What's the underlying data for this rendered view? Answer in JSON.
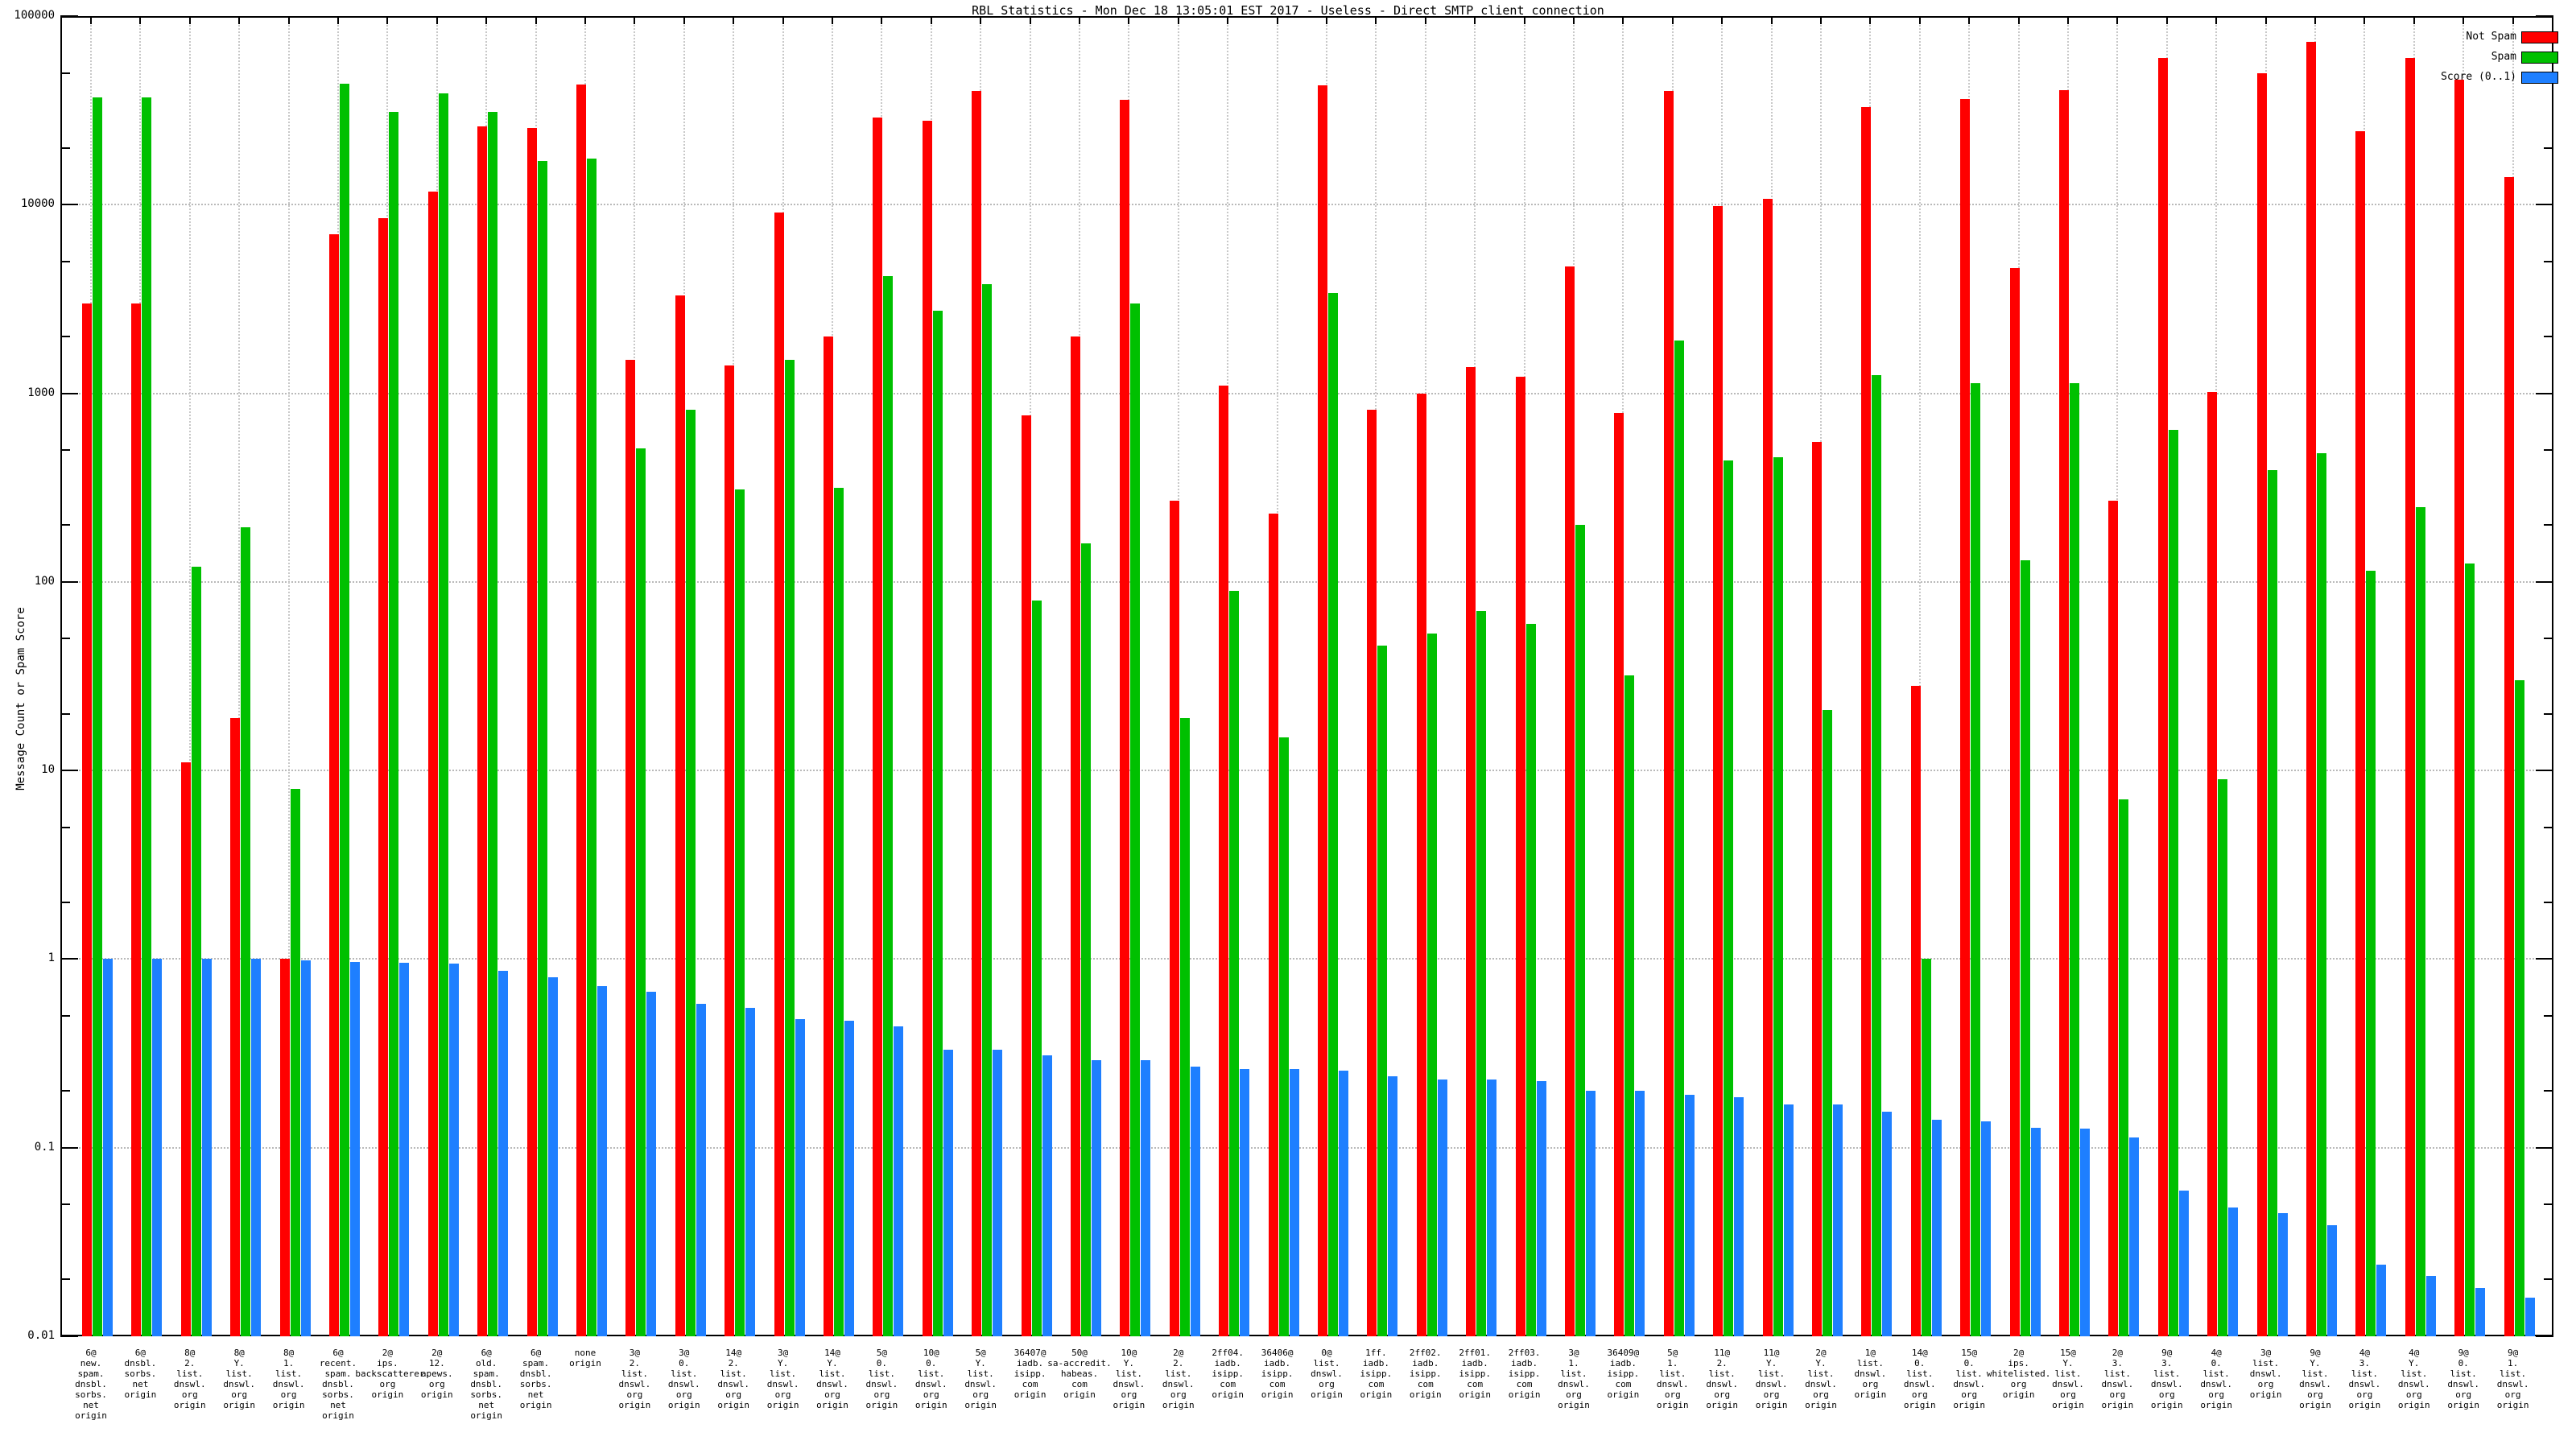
{
  "title": "RBL Statistics - Mon Dec 18 13:05:01 EST 2017 - Useless - Direct SMTP client connection",
  "y_axis_label": "Message Count or Spam Score",
  "legend": {
    "not_spam_label": "Not Spam",
    "spam_label": "Spam",
    "score_label": "Score (0..1)"
  },
  "colors": {
    "not_spam": "#ff0000",
    "spam": "#00c000",
    "score": "#1e7fff",
    "grid": "#b9b9b9",
    "axis": "#000000"
  },
  "chart_data": {
    "type": "bar",
    "scale": "log",
    "ylim": [
      0.01,
      100000
    ],
    "y_ticks": [
      "100000",
      "10000",
      "1000",
      "100",
      "10",
      "1",
      "0.1",
      "0.01"
    ],
    "grid": true,
    "legend_position": "top-right",
    "series_names": [
      "Not Spam",
      "Spam",
      "Score (0..1)"
    ],
    "groups": [
      {
        "label_lines": [
          "6@",
          "new.",
          "spam.",
          "dnsbl.",
          "sorbs.",
          "net",
          "origin"
        ],
        "not_spam": 3000,
        "spam": 37000,
        "score": 1.0
      },
      {
        "label_lines": [
          "6@",
          "dnsbl.",
          "sorbs.",
          "net",
          "origin"
        ],
        "not_spam": 3000,
        "spam": 37000,
        "score": 1.0
      },
      {
        "label_lines": [
          "8@",
          "2.",
          "list.",
          "dnswl.",
          "org",
          "origin"
        ],
        "not_spam": 11,
        "spam": 120,
        "score": 1.0
      },
      {
        "label_lines": [
          "8@",
          "Y.",
          "list.",
          "dnswl.",
          "org",
          "origin"
        ],
        "not_spam": 19,
        "spam": 195,
        "score": 1.0
      },
      {
        "label_lines": [
          "8@",
          "1.",
          "list.",
          "dnswl.",
          "org",
          "origin"
        ],
        "not_spam": 1.0,
        "spam": 8,
        "score": 0.98
      },
      {
        "label_lines": [
          "6@",
          "recent.",
          "spam.",
          "dnsbl.",
          "sorbs.",
          "net",
          "origin"
        ],
        "not_spam": 7000,
        "spam": 44000,
        "score": 0.97
      },
      {
        "label_lines": [
          "2@",
          "ips.",
          "backscatterer.",
          "org",
          "origin"
        ],
        "not_spam": 8500,
        "spam": 31000,
        "score": 0.96
      },
      {
        "label_lines": [
          "2@",
          "12.",
          "apews.",
          "org",
          "origin"
        ],
        "not_spam": 11700,
        "spam": 39000,
        "score": 0.95
      },
      {
        "label_lines": [
          "6@",
          "old.",
          "spam.",
          "dnsbl.",
          "sorbs.",
          "net",
          "origin"
        ],
        "not_spam": 26000,
        "spam": 31000,
        "score": 0.87
      },
      {
        "label_lines": [
          "6@",
          "spam.",
          "dnsbl.",
          "sorbs.",
          "net",
          "origin"
        ],
        "not_spam": 25500,
        "spam": 17000,
        "score": 0.8
      },
      {
        "label_lines": [
          "none",
          "origin"
        ],
        "not_spam": 43500,
        "spam": 17600,
        "score": 0.72
      },
      {
        "label_lines": [
          "3@",
          "2.",
          "list.",
          "dnswl.",
          "org",
          "origin"
        ],
        "not_spam": 1500,
        "spam": 510,
        "score": 0.67
      },
      {
        "label_lines": [
          "3@",
          "0.",
          "list.",
          "dnswl.",
          "org",
          "origin"
        ],
        "not_spam": 3300,
        "spam": 820,
        "score": 0.58
      },
      {
        "label_lines": [
          "14@",
          "2.",
          "list.",
          "dnswl.",
          "org",
          "origin"
        ],
        "not_spam": 1400,
        "spam": 310,
        "score": 0.55
      },
      {
        "label_lines": [
          "3@",
          "Y.",
          "list.",
          "dnswl.",
          "org",
          "origin"
        ],
        "not_spam": 9100,
        "spam": 1500,
        "score": 0.48
      },
      {
        "label_lines": [
          "14@",
          "Y.",
          "list.",
          "dnswl.",
          "org",
          "origin"
        ],
        "not_spam": 2000,
        "spam": 315,
        "score": 0.47
      },
      {
        "label_lines": [
          "5@",
          "0.",
          "list.",
          "dnswl.",
          "org",
          "origin"
        ],
        "not_spam": 29000,
        "spam": 4200,
        "score": 0.44
      },
      {
        "label_lines": [
          "10@",
          "0.",
          "list.",
          "dnswl.",
          "org",
          "origin"
        ],
        "not_spam": 28000,
        "spam": 2750,
        "score": 0.33
      },
      {
        "label_lines": [
          "5@",
          "Y.",
          "list.",
          "dnswl.",
          "org",
          "origin"
        ],
        "not_spam": 40000,
        "spam": 3800,
        "score": 0.33
      },
      {
        "label_lines": [
          "36407@",
          "iadb.",
          "isipp.",
          "com",
          "origin"
        ],
        "not_spam": 760,
        "spam": 80,
        "score": 0.31
      },
      {
        "label_lines": [
          "50@",
          "sa-accredit.",
          "habeas.",
          "com",
          "origin"
        ],
        "not_spam": 2000,
        "spam": 160,
        "score": 0.29
      },
      {
        "label_lines": [
          "10@",
          "Y.",
          "list.",
          "dnswl.",
          "org",
          "origin"
        ],
        "not_spam": 36000,
        "spam": 3000,
        "score": 0.29
      },
      {
        "label_lines": [
          "2@",
          "2.",
          "list.",
          "dnswl.",
          "org",
          "origin"
        ],
        "not_spam": 270,
        "spam": 19,
        "score": 0.27
      },
      {
        "label_lines": [
          "2ff04.",
          "iadb.",
          "isipp.",
          "com",
          "origin"
        ],
        "not_spam": 1100,
        "spam": 90,
        "score": 0.26
      },
      {
        "label_lines": [
          "36406@",
          "iadb.",
          "isipp.",
          "com",
          "origin"
        ],
        "not_spam": 230,
        "spam": 15,
        "score": 0.26
      },
      {
        "label_lines": [
          "0@",
          "list.",
          "dnswl.",
          "org",
          "origin"
        ],
        "not_spam": 43000,
        "spam": 3400,
        "score": 0.255
      },
      {
        "label_lines": [
          "1ff.",
          "iadb.",
          "isipp.",
          "com",
          "origin"
        ],
        "not_spam": 815,
        "spam": 46,
        "score": 0.24
      },
      {
        "label_lines": [
          "2ff02.",
          "iadb.",
          "isipp.",
          "com",
          "origin"
        ],
        "not_spam": 1000,
        "spam": 53,
        "score": 0.23
      },
      {
        "label_lines": [
          "2ff01.",
          "iadb.",
          "isipp.",
          "com",
          "origin"
        ],
        "not_spam": 1380,
        "spam": 70,
        "score": 0.23
      },
      {
        "label_lines": [
          "2ff03.",
          "iadb.",
          "isipp.",
          "com",
          "origin"
        ],
        "not_spam": 1230,
        "spam": 60,
        "score": 0.225
      },
      {
        "label_lines": [
          "3@",
          "1.",
          "list.",
          "dnswl.",
          "org",
          "origin"
        ],
        "not_spam": 4700,
        "spam": 200,
        "score": 0.2
      },
      {
        "label_lines": [
          "36409@",
          "iadb.",
          "isipp.",
          "com",
          "origin"
        ],
        "not_spam": 790,
        "spam": 32,
        "score": 0.2
      },
      {
        "label_lines": [
          "5@",
          "1.",
          "list.",
          "dnswl.",
          "org",
          "origin"
        ],
        "not_spam": 40000,
        "spam": 1900,
        "score": 0.19
      },
      {
        "label_lines": [
          "11@",
          "2.",
          "list.",
          "dnswl.",
          "org",
          "origin"
        ],
        "not_spam": 9800,
        "spam": 440,
        "score": 0.185
      },
      {
        "label_lines": [
          "11@",
          "Y.",
          "list.",
          "dnswl.",
          "org",
          "origin"
        ],
        "not_spam": 10700,
        "spam": 460,
        "score": 0.17
      },
      {
        "label_lines": [
          "2@",
          "Y.",
          "list.",
          "dnswl.",
          "org",
          "origin"
        ],
        "not_spam": 550,
        "spam": 21,
        "score": 0.17
      },
      {
        "label_lines": [
          "1@",
          "list.",
          "dnswl.",
          "org",
          "origin"
        ],
        "not_spam": 33000,
        "spam": 1250,
        "score": 0.155
      },
      {
        "label_lines": [
          "14@",
          "0.",
          "list.",
          "dnswl.",
          "org",
          "origin"
        ],
        "not_spam": 28,
        "spam": 1.0,
        "score": 0.14
      },
      {
        "label_lines": [
          "15@",
          "0.",
          "list.",
          "dnswl.",
          "org",
          "origin"
        ],
        "not_spam": 36500,
        "spam": 1130,
        "score": 0.138
      },
      {
        "label_lines": [
          "2@",
          "ips.",
          "whitelisted.",
          "org",
          "origin"
        ],
        "not_spam": 4600,
        "spam": 130,
        "score": 0.127
      },
      {
        "label_lines": [
          "15@",
          "Y.",
          "list.",
          "dnswl.",
          "org",
          "origin"
        ],
        "not_spam": 40500,
        "spam": 1130,
        "score": 0.126
      },
      {
        "label_lines": [
          "2@",
          "3.",
          "list.",
          "dnswl.",
          "org",
          "origin"
        ],
        "not_spam": 270,
        "spam": 7,
        "score": 0.113
      },
      {
        "label_lines": [
          "9@",
          "3.",
          "list.",
          "dnswl.",
          "org",
          "origin"
        ],
        "not_spam": 60000,
        "spam": 640,
        "score": 0.059
      },
      {
        "label_lines": [
          "4@",
          "0.",
          "list.",
          "dnswl.",
          "org",
          "origin"
        ],
        "not_spam": 1020,
        "spam": 9,
        "score": 0.048
      },
      {
        "label_lines": [
          "3@",
          "list.",
          "dnswl.",
          "org",
          "origin"
        ],
        "not_spam": 50000,
        "spam": 390,
        "score": 0.045
      },
      {
        "label_lines": [
          "9@",
          "Y.",
          "list.",
          "dnswl.",
          "org",
          "origin"
        ],
        "not_spam": 73000,
        "spam": 480,
        "score": 0.039
      },
      {
        "label_lines": [
          "4@",
          "3.",
          "list.",
          "dnswl.",
          "org",
          "origin"
        ],
        "not_spam": 24500,
        "spam": 115,
        "score": 0.024
      },
      {
        "label_lines": [
          "4@",
          "Y.",
          "list.",
          "dnswl.",
          "org",
          "origin"
        ],
        "not_spam": 60000,
        "spam": 250,
        "score": 0.021
      },
      {
        "label_lines": [
          "9@",
          "0.",
          "list.",
          "dnswl.",
          "org",
          "origin"
        ],
        "not_spam": 46000,
        "spam": 125,
        "score": 0.018
      },
      {
        "label_lines": [
          "9@",
          "1.",
          "list.",
          "dnswl.",
          "org",
          "origin"
        ],
        "not_spam": 14000,
        "spam": 30,
        "score": 0.016
      }
    ]
  }
}
